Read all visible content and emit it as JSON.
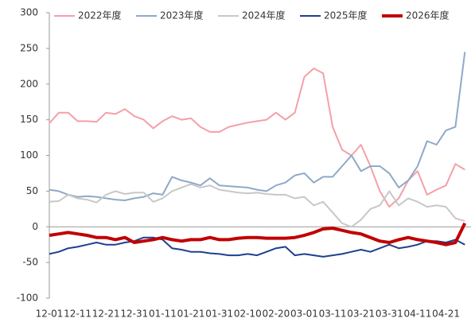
{
  "chart_data": {
    "type": "line",
    "categories": [
      "12-01",
      null,
      null,
      "12-11",
      null,
      null,
      "12-21",
      null,
      null,
      "12-31",
      null,
      null,
      "01-11",
      null,
      null,
      "01-21",
      null,
      null,
      "01-31",
      null,
      null,
      "02-10",
      null,
      null,
      "02-20",
      null,
      null,
      "03-01",
      null,
      null,
      "03-11",
      null,
      null,
      "03-21",
      null,
      null,
      "03-31",
      null,
      null,
      "04-11",
      null,
      null,
      "04-21",
      null,
      null
    ],
    "series": [
      {
        "name": "2022年度",
        "color": "#f4a0a8",
        "width": 2,
        "values": [
          145,
          160,
          160,
          148,
          148,
          147,
          160,
          158,
          165,
          155,
          150,
          138,
          148,
          155,
          150,
          152,
          140,
          133,
          133,
          140,
          143,
          146,
          148,
          150,
          160,
          150,
          160,
          210,
          222,
          215,
          140,
          108,
          100,
          115,
          85,
          50,
          28,
          40,
          65,
          78,
          45,
          52,
          58,
          88,
          80
        ]
      },
      {
        "name": "2023年度",
        "color": "#8fa9c8",
        "width": 2,
        "values": [
          52,
          50,
          45,
          42,
          43,
          42,
          40,
          38,
          37,
          40,
          42,
          47,
          45,
          70,
          65,
          62,
          58,
          68,
          58,
          57,
          56,
          55,
          52,
          50,
          58,
          62,
          72,
          75,
          62,
          70,
          70,
          85,
          100,
          78,
          85,
          85,
          75,
          55,
          65,
          85,
          120,
          115,
          135,
          140,
          245
        ]
      },
      {
        "name": "2024年度",
        "color": "#c8c8c8",
        "width": 2,
        "values": [
          35,
          36,
          45,
          40,
          38,
          34,
          45,
          50,
          46,
          48,
          48,
          35,
          40,
          50,
          55,
          60,
          55,
          58,
          52,
          50,
          48,
          47,
          48,
          46,
          45,
          45,
          40,
          42,
          30,
          35,
          20,
          5,
          0,
          10,
          25,
          30,
          50,
          30,
          40,
          35,
          28,
          30,
          28,
          12,
          8
        ]
      },
      {
        "name": "2025年度",
        "color": "#1f3f8f",
        "width": 2,
        "values": [
          -38,
          -35,
          -30,
          -28,
          -25,
          -22,
          -25,
          -25,
          -22,
          -20,
          -15,
          -15,
          -18,
          -30,
          -32,
          -35,
          -35,
          -37,
          -38,
          -40,
          -40,
          -38,
          -40,
          -35,
          -30,
          -28,
          -40,
          -38,
          -40,
          -42,
          -40,
          -38,
          -35,
          -32,
          -35,
          -30,
          -25,
          -30,
          -28,
          -25,
          -20,
          -20,
          -22,
          -18,
          -25
        ]
      },
      {
        "name": "2026年度",
        "color": "#c00000",
        "width": 4,
        "values": [
          -12,
          -10,
          -8,
          -10,
          -12,
          -15,
          -15,
          -18,
          -15,
          -22,
          -20,
          -18,
          -15,
          -18,
          -20,
          -18,
          -18,
          -15,
          -18,
          -18,
          -16,
          -15,
          -15,
          -16,
          -16,
          -16,
          -15,
          -12,
          -8,
          -3,
          -2,
          -5,
          -8,
          -10,
          -15,
          -20,
          -22,
          -18,
          -15,
          -18,
          -20,
          -22,
          -25,
          -22,
          5
        ]
      }
    ],
    "ylim": [
      -100,
      300
    ],
    "yticks": [
      -100,
      -50,
      0,
      50,
      100,
      150,
      200,
      250,
      300
    ],
    "legend": "top"
  }
}
